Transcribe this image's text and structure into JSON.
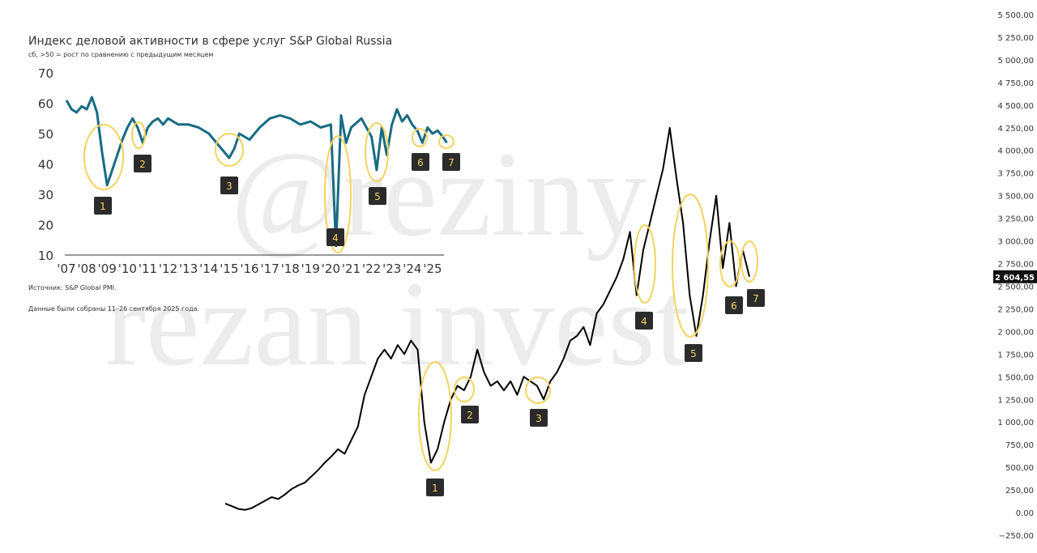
{
  "watermark": [
    "@reziny",
    "rezan invest"
  ],
  "chart_data": [
    {
      "type": "line",
      "title": "Индекс деловой активности в сфере услуг S&P Global Russia",
      "subtitle": "сб, >50 = рост по сравнению с предыдущим месяцем",
      "source": "Источник: S&P Global PMI.",
      "note": "Данные были собраны 11–26 сентября 2025 года.",
      "xlim": [
        2006.92,
        2025.56
      ],
      "xticks": [
        {
          "value": 2007,
          "label": "'07"
        },
        {
          "value": 2008,
          "label": "'08"
        },
        {
          "value": 2009,
          "label": "'09"
        },
        {
          "value": 2010,
          "label": "'10"
        },
        {
          "value": 2011,
          "label": "'11"
        },
        {
          "value": 2012,
          "label": "'12"
        },
        {
          "value": 2013,
          "label": "'13"
        },
        {
          "value": 2014,
          "label": "'14"
        },
        {
          "value": 2015,
          "label": "'15"
        },
        {
          "value": 2016,
          "label": "'16"
        },
        {
          "value": 2017,
          "label": "'17"
        },
        {
          "value": 2018,
          "label": "'18"
        },
        {
          "value": 2019,
          "label": "'19"
        },
        {
          "value": 2020,
          "label": "'20"
        },
        {
          "value": 2021,
          "label": "'21"
        },
        {
          "value": 2022,
          "label": "'22"
        },
        {
          "value": 2023,
          "label": "'23"
        },
        {
          "value": 2024,
          "label": "'24"
        },
        {
          "value": 2025,
          "label": "'25"
        }
      ],
      "ylim": [
        10,
        70
      ],
      "yticks": [
        10,
        20,
        30,
        40,
        50,
        60,
        70
      ],
      "series": [
        {
          "color": "#176b83",
          "x": [
            2007.0,
            2007.25,
            2007.5,
            2007.75,
            2008.0,
            2008.25,
            2008.5,
            2008.75,
            2009.0,
            2009.25,
            2009.5,
            2009.75,
            2010.0,
            2010.25,
            2010.5,
            2010.75,
            2011.0,
            2011.25,
            2011.5,
            2011.75,
            2012.0,
            2012.5,
            2013.0,
            2013.5,
            2014.0,
            2014.5,
            2015.0,
            2015.25,
            2015.5,
            2016.0,
            2016.5,
            2017.0,
            2017.5,
            2018.0,
            2018.5,
            2019.0,
            2019.5,
            2020.0,
            2020.25,
            2020.5,
            2020.75,
            2021.0,
            2021.5,
            2022.0,
            2022.25,
            2022.5,
            2022.75,
            2023.0,
            2023.25,
            2023.5,
            2023.75,
            2024.0,
            2024.25,
            2024.5,
            2024.75,
            2025.0,
            2025.25,
            2025.5,
            2025.7
          ],
          "values": [
            61,
            58,
            57,
            59,
            58,
            62,
            57,
            44,
            33,
            38,
            43,
            48,
            52,
            55,
            52,
            47,
            52,
            54,
            55,
            53,
            55,
            53,
            53,
            52,
            50,
            46,
            42,
            45,
            50,
            48,
            52,
            55,
            56,
            55,
            53,
            54,
            52,
            53,
            13,
            56,
            47,
            52,
            55,
            49,
            38,
            52,
            43,
            53,
            58,
            54,
            56,
            53,
            51,
            47,
            52,
            50,
            51,
            49,
            47
          ]
        }
      ],
      "annotations": [
        "1",
        "2",
        "3",
        "4",
        "5",
        "6",
        "7"
      ]
    },
    {
      "type": "line",
      "ylim": [
        -250,
        5500
      ],
      "yticks": [
        {
          "value": 5500,
          "label": "5 500,00"
        },
        {
          "value": 5250,
          "label": "5 250,00"
        },
        {
          "value": 5000,
          "label": "5 000,00"
        },
        {
          "value": 4750,
          "label": "4 750,00"
        },
        {
          "value": 4500,
          "label": "4 500,00"
        },
        {
          "value": 4250,
          "label": "4 250,00"
        },
        {
          "value": 4000,
          "label": "4 000,00"
        },
        {
          "value": 3750,
          "label": "3 750,00"
        },
        {
          "value": 3500,
          "label": "3 500,00"
        },
        {
          "value": 3250,
          "label": "3 250,00"
        },
        {
          "value": 3000,
          "label": "3 000,00"
        },
        {
          "value": 2750,
          "label": "2 750,00"
        },
        {
          "value": 2500,
          "label": "2 500,00"
        },
        {
          "value": 2250,
          "label": "2 250,00"
        },
        {
          "value": 2000,
          "label": "2 000,00"
        },
        {
          "value": 1750,
          "label": "1 750,00"
        },
        {
          "value": 1500,
          "label": "1 500,00"
        },
        {
          "value": 1250,
          "label": "1 250,00"
        },
        {
          "value": 1000,
          "label": "1 000,00"
        },
        {
          "value": 750,
          "label": "750,00"
        },
        {
          "value": 500,
          "label": "500,00"
        },
        {
          "value": 250,
          "label": "250,00"
        },
        {
          "value": 0,
          "label": "0,00"
        },
        {
          "value": -250,
          "label": "−250,00"
        }
      ],
      "last_price": {
        "value": 2604.55,
        "label": "2 604,55"
      },
      "series": [
        {
          "color": "#000000",
          "values": [
            100,
            70,
            40,
            30,
            50,
            90,
            130,
            170,
            150,
            200,
            260,
            300,
            330,
            400,
            470,
            550,
            620,
            700,
            650,
            800,
            950,
            1300,
            1500,
            1700,
            1800,
            1700,
            1850,
            1750,
            1900,
            1800,
            1000,
            550,
            700,
            1000,
            1250,
            1400,
            1350,
            1500,
            1800,
            1550,
            1400,
            1450,
            1350,
            1450,
            1300,
            1500,
            1450,
            1400,
            1250,
            1450,
            1550,
            1700,
            1900,
            1950,
            2050,
            1850,
            2200,
            2300,
            2450,
            2600,
            2800,
            3100,
            2400,
            2900,
            3200,
            3500,
            3800,
            4250,
            3700,
            3200,
            2400,
            1950,
            2400,
            3000,
            3500,
            2700,
            3200,
            2500,
            2900,
            2605
          ]
        }
      ],
      "annotations": [
        "1",
        "2",
        "3",
        "4",
        "5",
        "6",
        "7"
      ]
    }
  ]
}
